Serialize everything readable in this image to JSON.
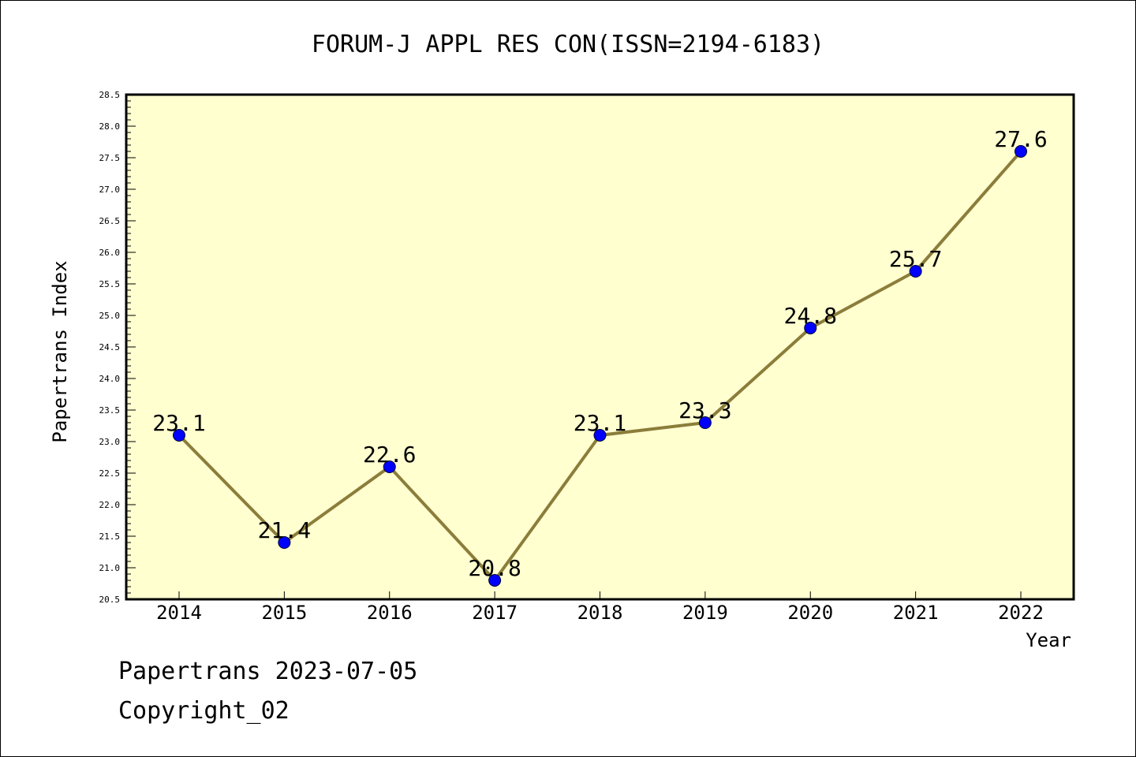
{
  "chart_data": {
    "type": "line",
    "title": "FORUM-J APPL RES CON(ISSN=2194-6183)",
    "xlabel": "Year",
    "ylabel": "Papertrans Index",
    "categories": [
      "2014",
      "2015",
      "2016",
      "2017",
      "2018",
      "2019",
      "2020",
      "2021",
      "2022"
    ],
    "series": [
      {
        "values": [
          23.1,
          21.4,
          22.6,
          20.8,
          23.1,
          23.3,
          24.8,
          25.7,
          27.6
        ],
        "labels": [
          "23.1",
          "21.4",
          "22.6",
          "20.8",
          "23.1",
          "23.3",
          "24.8",
          "25.7",
          "27.6"
        ],
        "line_color": "#8b7d3a",
        "marker_color": "#0000ff"
      }
    ],
    "ylim": [
      20.5,
      28.5
    ],
    "yticks": [
      "20.5",
      "21.0",
      "21.5",
      "22.0",
      "22.5",
      "23.0",
      "23.5",
      "24.0",
      "24.5",
      "25.0",
      "25.5",
      "26.0",
      "26.5",
      "27.0",
      "27.5",
      "28.0",
      "28.5"
    ],
    "plot_background": "#ffffd0",
    "grid": false,
    "legend": false
  },
  "footer": {
    "line1": "Papertrans 2023-07-05",
    "line2": "Copyright_02"
  }
}
